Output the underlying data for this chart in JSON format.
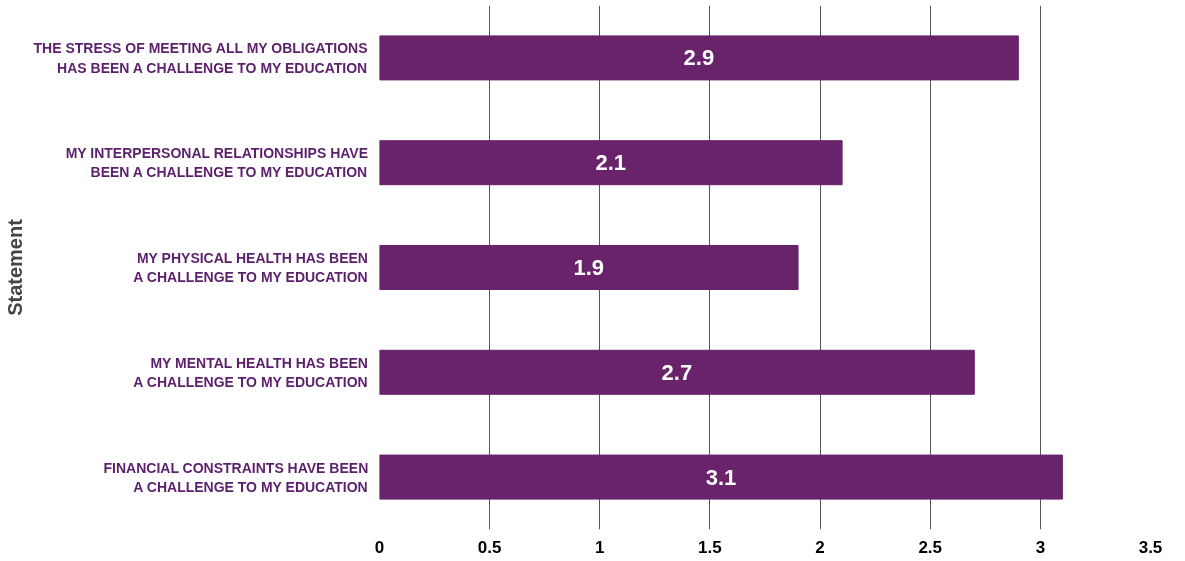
{
  "chart_data": {
    "type": "bar",
    "orientation": "horizontal",
    "ylabel": "Statement",
    "categories": [
      "THE STRESS OF MEETING ALL MY OBLIGATIONS HAS BEEN A CHALLENGE TO MY EDUCATION",
      "MY INTERPERSONAL RELATIONSHIPS HAVE BEEN A CHALLENGE TO MY EDUCATION",
      "MY PHYSICAL HEALTH HAS BEEN A CHALLENGE TO MY EDUCATION",
      "MY MENTAL HEALTH HAS BEEN A CHALLENGE TO MY EDUCATION",
      "FINANCIAL CONSTRAINTS HAVE BEEN A CHALLENGE TO MY EDUCATION"
    ],
    "values": [
      2.9,
      2.1,
      1.9,
      2.7,
      3.1
    ],
    "color": "#68236b",
    "data_labels": true,
    "grid": "x",
    "xlim": [
      0,
      3.5
    ],
    "xticks": [
      0,
      0.5,
      1,
      1.5,
      2,
      2.5,
      3,
      3.5
    ]
  }
}
